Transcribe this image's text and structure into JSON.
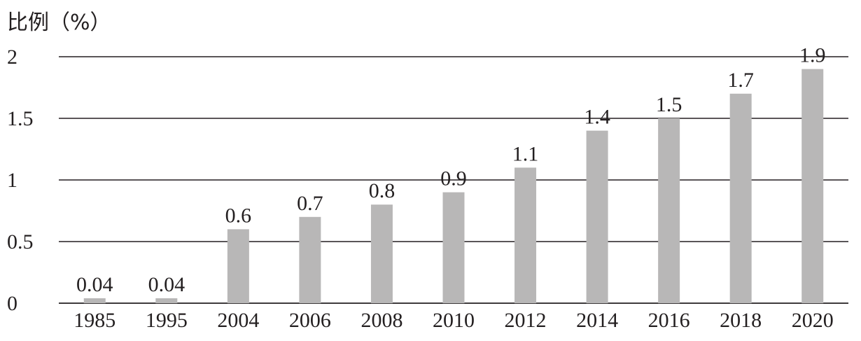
{
  "chart_data": {
    "type": "bar",
    "title": "",
    "xlabel": "",
    "ylabel": "比例（%）",
    "categories": [
      "1985",
      "1995",
      "2004",
      "2006",
      "2008",
      "2010",
      "2012",
      "2014",
      "2016",
      "2018",
      "2020"
    ],
    "series": [
      {
        "values": [
          0.04,
          0.04,
          0.6,
          0.7,
          0.8,
          0.9,
          1.1,
          1.4,
          1.5,
          1.7,
          1.9
        ],
        "value_labels": [
          "0.04",
          "0.04",
          "0.6",
          "0.7",
          "0.8",
          "0.9",
          "1.1",
          "1.4",
          "1.5",
          "1.7",
          "1.9"
        ],
        "color": "#b8b7b7"
      }
    ],
    "ylim": [
      0,
      2
    ],
    "yticks": [
      0,
      0.5,
      1,
      1.5,
      2
    ],
    "ytick_labels": [
      "0",
      "0.5",
      "1",
      "1.5",
      "2"
    ],
    "grid": true,
    "legend": "none"
  }
}
